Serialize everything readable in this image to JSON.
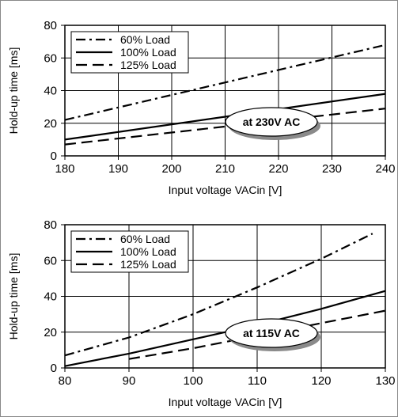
{
  "chart_data": [
    {
      "type": "line",
      "xlabel": "Input voltage VACin [V]",
      "ylabel": "Hold-up time [ms]",
      "xlim": [
        180,
        240
      ],
      "ylim": [
        0,
        80
      ],
      "x_ticks": [
        "180",
        "190",
        "200",
        "210",
        "220",
        "230",
        "240"
      ],
      "y_ticks": [
        "0",
        "20",
        "40",
        "60",
        "80"
      ],
      "grid": true,
      "legend_position": "top-left",
      "annotation": "at 230V AC",
      "series": [
        {
          "name": "60% Load",
          "dash": "dash-dot",
          "x": [
            180,
            240
          ],
          "y": [
            22,
            68
          ]
        },
        {
          "name": "100% Load",
          "dash": "solid",
          "x": [
            180,
            240
          ],
          "y": [
            10,
            38
          ]
        },
        {
          "name": "125% Load",
          "dash": "dash",
          "x": [
            180,
            240
          ],
          "y": [
            7,
            29
          ]
        }
      ]
    },
    {
      "type": "line",
      "xlabel": "Input voltage VACin [V]",
      "ylabel": "Hold-up time [ms]",
      "xlim": [
        80,
        130
      ],
      "ylim": [
        0,
        80
      ],
      "x_ticks": [
        "80",
        "90",
        "100",
        "110",
        "120",
        "130"
      ],
      "y_ticks": [
        "0",
        "20",
        "40",
        "60",
        "80"
      ],
      "grid": true,
      "legend_position": "top-left",
      "annotation": "at 115V AC",
      "series": [
        {
          "name": "60% Load",
          "dash": "dash-dot",
          "x": [
            80,
            90,
            100,
            110,
            120,
            128
          ],
          "y": [
            7,
            17,
            30,
            45,
            61,
            75
          ]
        },
        {
          "name": "100% Load",
          "dash": "solid",
          "x": [
            80,
            90,
            100,
            110,
            120,
            130
          ],
          "y": [
            1,
            8,
            16,
            24,
            33,
            43
          ]
        },
        {
          "name": "125% Load",
          "dash": "dash",
          "x": [
            90,
            100,
            110,
            120,
            130
          ],
          "y": [
            5,
            11,
            18,
            25,
            32
          ]
        }
      ]
    }
  ]
}
